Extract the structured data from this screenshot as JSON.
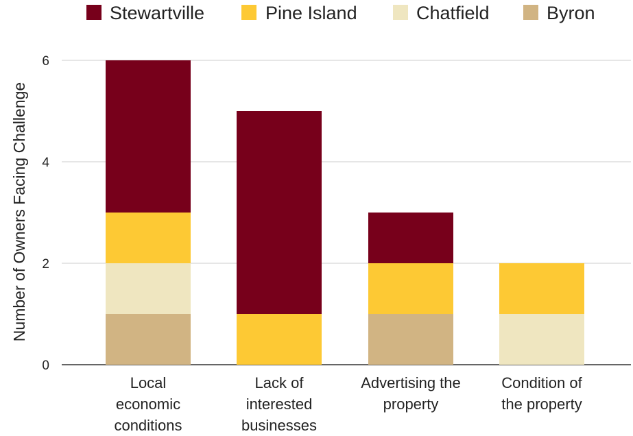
{
  "chart_data": {
    "type": "bar",
    "stacked": true,
    "title": "",
    "xlabel": "",
    "ylabel": "Number of Owners Facing Challenge",
    "ylim": [
      0,
      6
    ],
    "yticks": [
      0,
      2,
      4,
      6
    ],
    "grid": true,
    "legend_position": "top",
    "categories": [
      [
        "Local",
        "economic",
        "conditions"
      ],
      [
        "Lack of",
        "interested",
        "businesses"
      ],
      [
        "Advertising the",
        "property"
      ],
      [
        "Condition of",
        "the property"
      ]
    ],
    "series": [
      {
        "name": "Byron",
        "color": "#d1b483",
        "values": [
          1,
          0,
          1,
          0
        ]
      },
      {
        "name": "Chatfield",
        "color": "#efe6c0",
        "values": [
          1,
          0,
          0,
          1
        ]
      },
      {
        "name": "Pine Island",
        "color": "#fdc934",
        "values": [
          1,
          1,
          1,
          1
        ]
      },
      {
        "name": "Stewartville",
        "color": "#77001b",
        "values": [
          3,
          4,
          1,
          0
        ]
      }
    ],
    "legend_order": [
      "Stewartville",
      "Pine Island",
      "Chatfield",
      "Byron"
    ]
  }
}
